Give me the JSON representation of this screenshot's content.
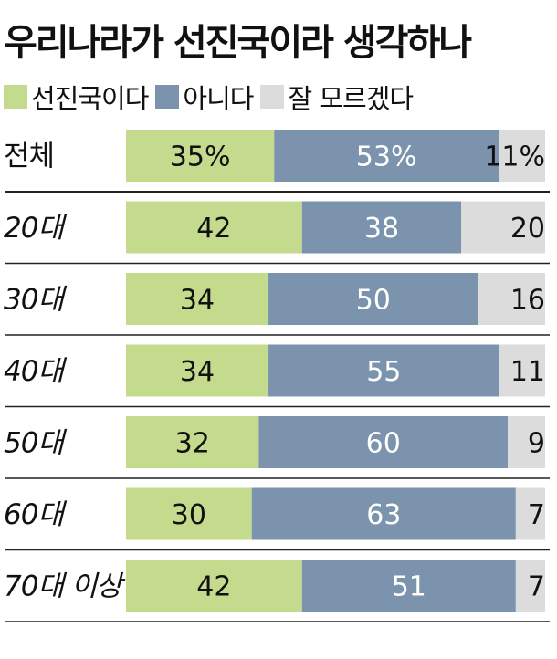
{
  "chart_data": {
    "type": "bar",
    "stacked": true,
    "orientation": "horizontal",
    "title": "우리나라가 선진국이라 생각하나",
    "categories": [
      "전체",
      "20대",
      "30대",
      "40대",
      "50대",
      "60대",
      "70대 이상"
    ],
    "series": [
      {
        "name": "선진국이다",
        "color": "#c4da8c",
        "values": [
          35,
          42,
          34,
          34,
          32,
          30,
          42
        ]
      },
      {
        "name": "아니다",
        "color": "#7b93ad",
        "values": [
          53,
          38,
          50,
          55,
          60,
          63,
          51
        ]
      },
      {
        "name": "잘 모르겠다",
        "color": "#dcdcdc",
        "values": [
          11,
          20,
          16,
          11,
          9,
          7,
          7
        ]
      }
    ],
    "data_labels": [
      [
        "35%",
        "53%",
        "11%"
      ],
      [
        "42",
        "38",
        "20"
      ],
      [
        "34",
        "50",
        "16"
      ],
      [
        "34",
        "55",
        "11"
      ],
      [
        "32",
        "60",
        "9"
      ],
      [
        "30",
        "63",
        "7"
      ],
      [
        "42",
        "51",
        "7"
      ]
    ],
    "legend": "top-left",
    "grid": false
  }
}
